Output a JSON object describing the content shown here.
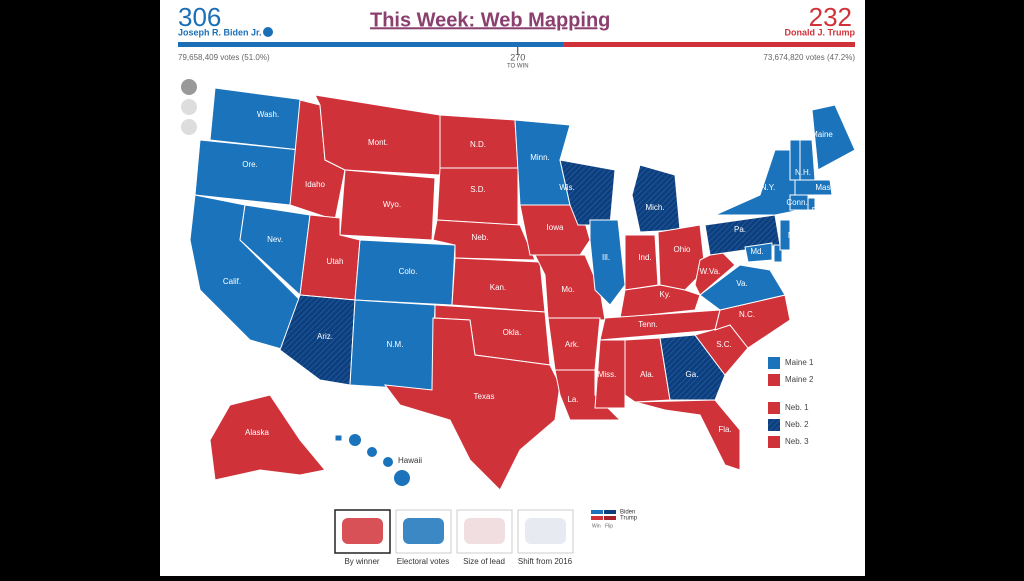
{
  "header": {
    "title": "This Week: Web Mapping",
    "biden": {
      "electoral_votes": 306,
      "name": "Joseph R. Biden Jr.",
      "votes": "79,658,409 votes (51.0%)",
      "color": "#1a6fb6"
    },
    "trump": {
      "electoral_votes": 232,
      "name": "Donald J. Trump",
      "votes": "73,674,820 votes (47.2%)",
      "color": "#d0323a"
    },
    "threshold": 270,
    "threshold_label": "TO WIN"
  },
  "colors": {
    "Biden": "#1a73bb",
    "Trump": "#d0323a"
  },
  "flip_colors": {
    "Biden": "#0d3f7e",
    "Trump": "#a3222a"
  },
  "states": [
    {
      "label": "Wash.",
      "winner": "Biden"
    },
    {
      "label": "Ore.",
      "winner": "Biden"
    },
    {
      "label": "Calif.",
      "winner": "Biden"
    },
    {
      "label": "Nev.",
      "winner": "Biden"
    },
    {
      "label": "Idaho",
      "winner": "Trump"
    },
    {
      "label": "Mont.",
      "winner": "Trump"
    },
    {
      "label": "Wyo.",
      "winner": "Trump"
    },
    {
      "label": "Utah",
      "winner": "Trump"
    },
    {
      "label": "Colo.",
      "winner": "Biden"
    },
    {
      "label": "Ariz.",
      "winner": "Biden",
      "flip": true
    },
    {
      "label": "N.M.",
      "winner": "Biden"
    },
    {
      "label": "N.D.",
      "winner": "Trump"
    },
    {
      "label": "S.D.",
      "winner": "Trump"
    },
    {
      "label": "Neb.",
      "winner": "Trump"
    },
    {
      "label": "Kan.",
      "winner": "Trump"
    },
    {
      "label": "Okla.",
      "winner": "Trump"
    },
    {
      "label": "Texas",
      "winner": "Trump"
    },
    {
      "label": "Minn.",
      "winner": "Biden"
    },
    {
      "label": "Iowa",
      "winner": "Trump"
    },
    {
      "label": "Mo.",
      "winner": "Trump"
    },
    {
      "label": "Ark.",
      "winner": "Trump"
    },
    {
      "label": "La.",
      "winner": "Trump"
    },
    {
      "label": "Wis.",
      "winner": "Biden",
      "flip": true
    },
    {
      "label": "Ill.",
      "winner": "Biden"
    },
    {
      "label": "Mich.",
      "winner": "Biden",
      "flip": true
    },
    {
      "label": "Ind.",
      "winner": "Trump"
    },
    {
      "label": "Ohio",
      "winner": "Trump"
    },
    {
      "label": "Ky.",
      "winner": "Trump"
    },
    {
      "label": "Tenn.",
      "winner": "Trump"
    },
    {
      "label": "Miss.",
      "winner": "Trump"
    },
    {
      "label": "Ala.",
      "winner": "Trump"
    },
    {
      "label": "Ga.",
      "winner": "Biden",
      "flip": true
    },
    {
      "label": "Fla.",
      "winner": "Trump"
    },
    {
      "label": "S.C.",
      "winner": "Trump"
    },
    {
      "label": "N.C.",
      "winner": "Trump"
    },
    {
      "label": "Va.",
      "winner": "Biden"
    },
    {
      "label": "W.Va.",
      "winner": "Trump"
    },
    {
      "label": "Pa.",
      "winner": "Biden",
      "flip": true
    },
    {
      "label": "N.Y.",
      "winner": "Biden"
    },
    {
      "label": "Md.",
      "winner": "Biden"
    },
    {
      "label": "Del.",
      "winner": "Biden"
    },
    {
      "label": "N.J.",
      "winner": "Biden"
    },
    {
      "label": "Conn.",
      "winner": "Biden"
    },
    {
      "label": "R.I.",
      "winner": "Biden"
    },
    {
      "label": "Mass.",
      "winner": "Biden"
    },
    {
      "label": "Vt.",
      "winner": "Biden"
    },
    {
      "label": "N.H.",
      "winner": "Biden"
    },
    {
      "label": "Maine",
      "winner": "Biden"
    },
    {
      "label": "Alaska",
      "winner": "Trump"
    },
    {
      "label": "Hawaii",
      "winner": "Biden"
    }
  ],
  "districts": [
    {
      "label": "Maine 1",
      "winner": "Biden"
    },
    {
      "label": "Maine 2",
      "winner": "Trump"
    },
    {
      "label": "Neb. 1",
      "winner": "Trump"
    },
    {
      "label": "Neb. 2",
      "winner": "Biden",
      "flip": true
    },
    {
      "label": "Neb. 3",
      "winner": "Trump"
    }
  ],
  "tabs": [
    "By winner",
    "Electoral votes",
    "Size of lead",
    "Shift from 2016"
  ],
  "key": {
    "names": [
      "Biden",
      "Trump"
    ],
    "kinds": [
      "Win",
      "Flip"
    ]
  }
}
